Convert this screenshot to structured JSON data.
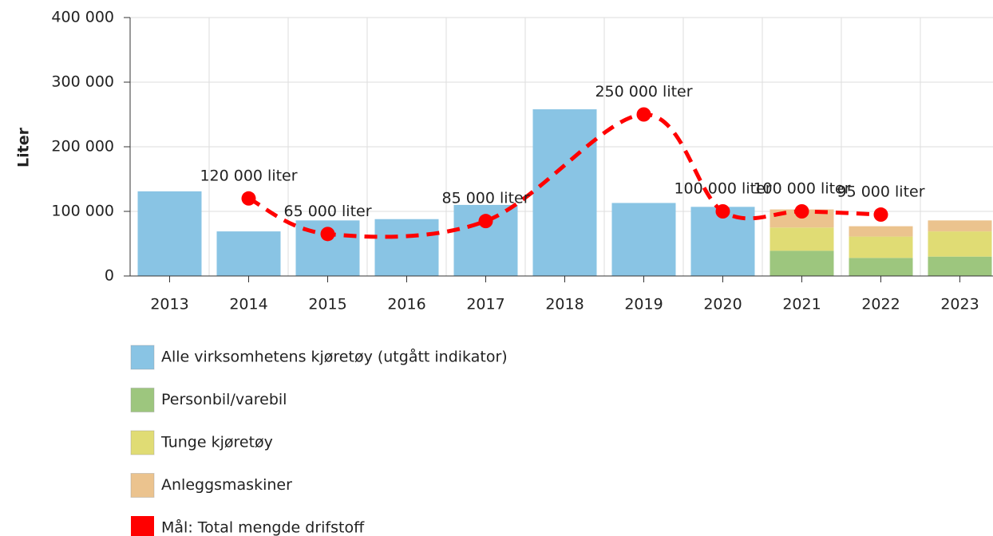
{
  "chart_data": {
    "type": "bar",
    "y_label": "Liter",
    "categories": [
      "2013",
      "2014",
      "2015",
      "2016",
      "2017",
      "2018",
      "2019",
      "2020",
      "2021",
      "2022",
      "2023"
    ],
    "series": [
      {
        "name": "Alle virksomhetens kjøretøy (utgått indikator)",
        "color": "#89c4e4",
        "values": [
          131000,
          69000,
          86000,
          88000,
          110000,
          258000,
          113000,
          107000,
          null,
          null,
          null
        ]
      },
      {
        "name": "Personbil/varebil",
        "color": "#9dc67e",
        "stack": true,
        "values": [
          null,
          null,
          null,
          null,
          null,
          null,
          null,
          null,
          39000,
          28000,
          30000
        ]
      },
      {
        "name": "Tunge kjøretøy",
        "color": "#e0dc74",
        "stack": true,
        "values": [
          null,
          null,
          null,
          null,
          null,
          null,
          null,
          null,
          36000,
          33000,
          39000
        ]
      },
      {
        "name": "Anleggsmaskiner",
        "color": "#ebc38e",
        "stack": true,
        "values": [
          null,
          null,
          null,
          null,
          null,
          null,
          null,
          null,
          28000,
          16000,
          17000
        ]
      },
      {
        "name": "Mål: Total mengde drifstoff",
        "color": "#ff0000",
        "kind": "line",
        "x": [
          "2014",
          "2015",
          "2017",
          "2019",
          "2020",
          "2021",
          "2022"
        ],
        "values": [
          120000,
          65000,
          85000,
          250000,
          100000,
          100000,
          95000
        ],
        "value_labels": [
          "120 000 liter",
          "65 000 liter",
          "85 000 liter",
          "250 000 liter",
          "100 000 liter",
          "100 000 liter",
          "95 000 liter"
        ]
      }
    ],
    "ylim": [
      0,
      400000
    ],
    "yticks": [
      0,
      {
        "value": 100000,
        "label": "100 000"
      },
      {
        "value": 200000,
        "label": "200 000"
      },
      {
        "value": 300000,
        "label": "300 000"
      },
      {
        "value": 400000,
        "label": "400 000"
      }
    ],
    "grid": true
  }
}
